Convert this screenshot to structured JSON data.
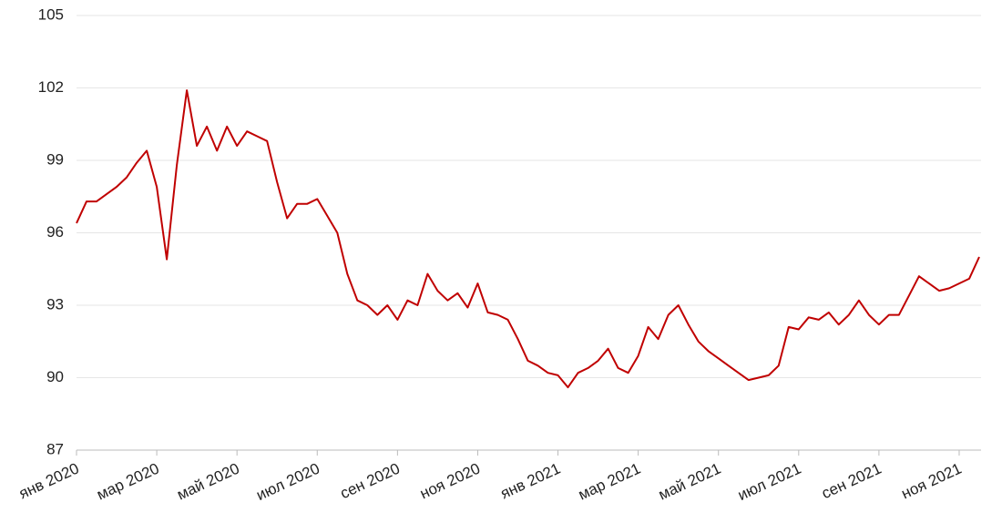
{
  "chart_data": {
    "type": "line",
    "categories": [
      "янв 2020",
      null,
      null,
      null,
      null,
      null,
      null,
      null,
      "мар 2020",
      null,
      null,
      null,
      null,
      null,
      null,
      null,
      "май 2020",
      null,
      null,
      null,
      null,
      null,
      null,
      null,
      "июл 2020",
      null,
      null,
      null,
      null,
      null,
      null,
      null,
      "сен 2020",
      null,
      null,
      null,
      null,
      null,
      null,
      null,
      "ноя 2020",
      null,
      null,
      null,
      null,
      null,
      null,
      null,
      "янв 2021",
      null,
      null,
      null,
      null,
      null,
      null,
      null,
      "мар 2021",
      null,
      null,
      null,
      null,
      null,
      null,
      null,
      "май 2021",
      null,
      null,
      null,
      null,
      null,
      null,
      null,
      "июл 2021",
      null,
      null,
      null,
      null,
      null,
      null,
      null,
      "сен 2021",
      null,
      null,
      null,
      null,
      null,
      null,
      null,
      "ноя 2021",
      null,
      null
    ],
    "series": [
      {
        "color": "#c00000",
        "values": [
          96.4,
          97.3,
          97.3,
          97.6,
          97.9,
          98.3,
          98.9,
          99.4,
          97.9,
          94.9,
          98.8,
          101.9,
          99.6,
          100.4,
          99.4,
          100.4,
          99.6,
          100.2,
          100.0,
          99.8,
          98.1,
          96.6,
          97.2,
          97.2,
          97.4,
          96.7,
          96.0,
          94.3,
          93.2,
          93.0,
          92.6,
          93.0,
          92.4,
          93.2,
          93.0,
          94.3,
          93.6,
          93.2,
          93.5,
          92.9,
          93.9,
          92.7,
          92.6,
          92.4,
          91.6,
          90.7,
          90.5,
          90.2,
          90.1,
          89.6,
          90.2,
          90.4,
          90.7,
          91.2,
          90.4,
          90.2,
          90.9,
          92.1,
          91.6,
          92.6,
          93.0,
          92.2,
          91.5,
          91.1,
          90.8,
          90.5,
          90.2,
          89.9,
          90.0,
          90.1,
          90.5,
          92.1,
          92.0,
          92.5,
          92.4,
          92.7,
          92.2,
          92.6,
          93.2,
          92.6,
          92.2,
          92.6,
          92.6,
          93.4,
          94.2,
          93.9,
          93.6,
          93.7,
          93.9,
          94.1,
          95.0
        ]
      }
    ],
    "ylim": [
      87,
      105
    ],
    "yticks": [
      87,
      90,
      93,
      96,
      99,
      102,
      105
    ],
    "grid": true
  }
}
